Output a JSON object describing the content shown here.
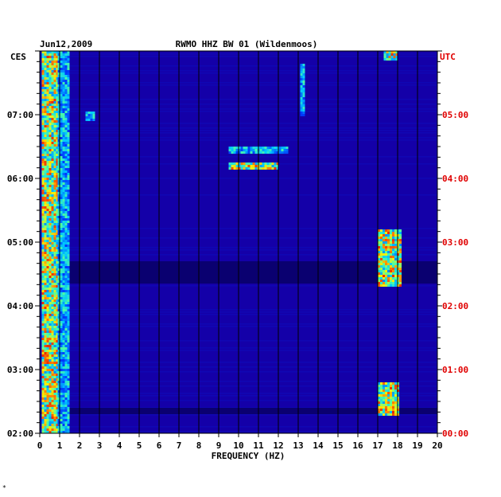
{
  "chart_data": {
    "type": "heatmap",
    "date": "Jun12,2009",
    "title": "RWMO HHZ BW 01 (Wildenmoos)",
    "xlabel": "FREQUENCY (HZ)",
    "left_axis_label": "CES",
    "right_axis_label": "UTC",
    "x_range": [
      0,
      20
    ],
    "x_ticks": [
      "0",
      "1",
      "2",
      "3",
      "4",
      "5",
      "6",
      "7",
      "8",
      "9",
      "10",
      "11",
      "12",
      "13",
      "14",
      "15",
      "16",
      "17",
      "18",
      "19",
      "20"
    ],
    "left_ticks": [
      "07:00",
      "06:00",
      "05:00",
      "04:00",
      "03:00",
      "02:00"
    ],
    "right_ticks": [
      "05:00",
      "04:00",
      "03:00",
      "02:00",
      "01:00",
      "00:00"
    ],
    "time_range_ces": [
      "02:00",
      "08:00"
    ],
    "grid": "vertical lines at each 1 Hz",
    "colors": {
      "background": "#1400a8",
      "tick_right": "#e00000",
      "tick_left": "#000000"
    },
    "energy_bands": [
      {
        "x0": 0.1,
        "x1": 0.9,
        "t0": 0.0,
        "t1": 6.0,
        "level": "high"
      },
      {
        "x0": 0.9,
        "x1": 1.4,
        "t0": 0.0,
        "t1": 6.0,
        "level": "medium"
      },
      {
        "x0": 2.3,
        "x1": 2.7,
        "t0": 4.9,
        "t1": 5.05,
        "level": "medium"
      },
      {
        "x0": 9.5,
        "x1": 12.0,
        "t0": 4.15,
        "t1": 4.25,
        "level": "high"
      },
      {
        "x0": 9.5,
        "x1": 12.5,
        "t0": 4.4,
        "t1": 4.5,
        "level": "medium"
      },
      {
        "x0": 17.0,
        "x1": 18.2,
        "t0": 2.3,
        "t1": 3.2,
        "level": "high"
      },
      {
        "x0": 17.0,
        "x1": 18.0,
        "t0": 0.3,
        "t1": 0.8,
        "level": "high"
      },
      {
        "x0": 17.3,
        "x1": 18.0,
        "t0": 5.85,
        "t1": 6.0,
        "level": "high"
      },
      {
        "x0": 13.1,
        "x1": 13.3,
        "t0": 5.0,
        "t1": 5.8,
        "level": "medium"
      }
    ],
    "quiet_bands": [
      {
        "t0": 2.35,
        "t1": 2.7
      },
      {
        "t0": 0.3,
        "t1": 0.4
      }
    ]
  },
  "footer_mark": "*"
}
